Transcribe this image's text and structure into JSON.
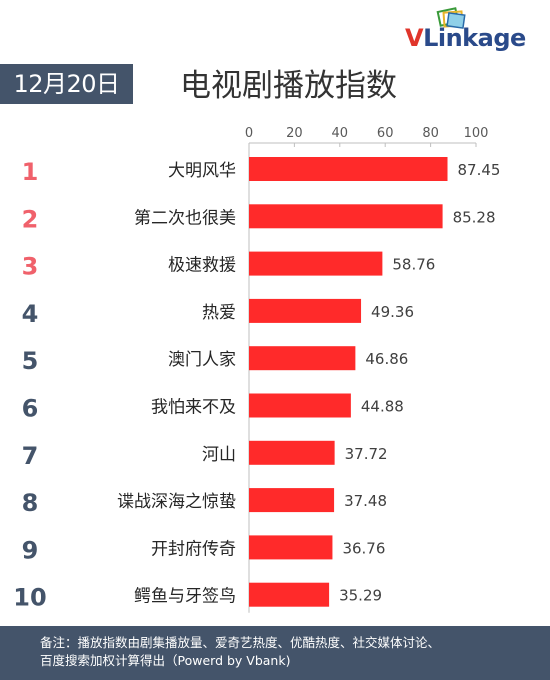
{
  "logo": {
    "text_v": "V",
    "text_rest": "Linkage",
    "icon": "stacked-squares-logo-icon"
  },
  "header": {
    "date": "12月20日"
  },
  "chart_data": {
    "type": "bar",
    "orientation": "horizontal",
    "title": "电视剧播放指数",
    "xlim": [
      0,
      100
    ],
    "ticks": [
      0,
      20,
      40,
      60,
      80,
      100
    ],
    "ranks": [
      "1",
      "2",
      "3",
      "4",
      "5",
      "6",
      "7",
      "8",
      "9",
      "10"
    ],
    "categories": [
      "大明风华",
      "第二次也很美",
      "极速救援",
      "热爱",
      "澳门人家",
      "我怕来不及",
      "河山",
      "谍战深海之惊蛰",
      "开封府传奇",
      "鳄鱼与牙签鸟"
    ],
    "values": [
      87.45,
      85.28,
      58.76,
      49.36,
      46.86,
      44.88,
      37.72,
      37.48,
      36.76,
      35.29
    ],
    "value_labels": [
      "87.45",
      "85.28",
      "58.76",
      "49.36",
      "46.86",
      "44.88",
      "37.72",
      "37.48",
      "36.76",
      "35.29"
    ],
    "bar_color": "#ff2a2a",
    "rank_color_top3": "#f0616b",
    "rank_color_rest": "#44546a"
  },
  "footer": {
    "line1": "备注：播放指数由剧集播放量、爱奇艺热度、优酷热度、社交媒体讨论、",
    "line2": "百度搜索加权计算得出（Powerd by Vbank)"
  }
}
